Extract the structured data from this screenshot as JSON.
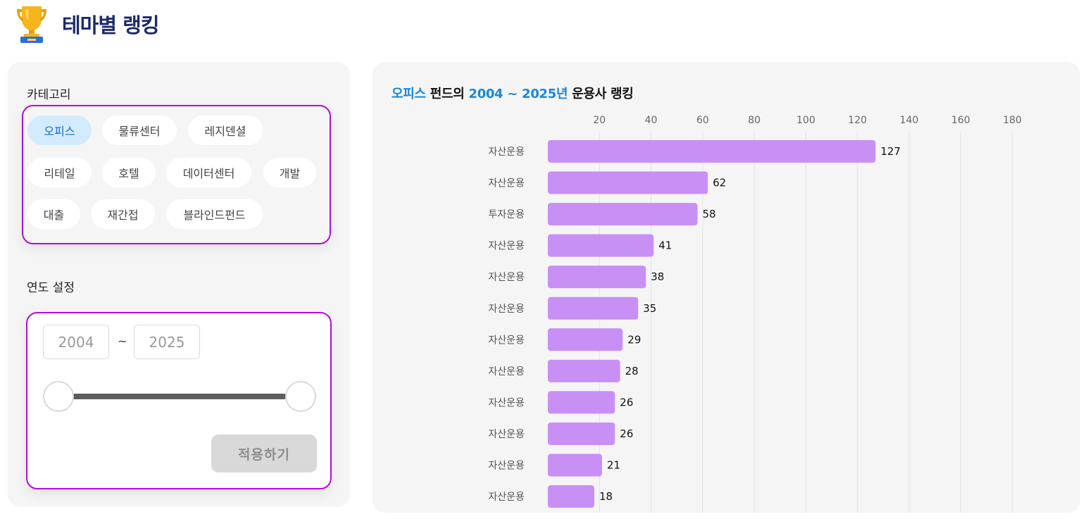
{
  "header": {
    "title": "테마별 랭킹",
    "icon": "trophy-icon"
  },
  "filters": {
    "category_label": "카테고리",
    "categories": [
      {
        "label": "오피스",
        "active": true
      },
      {
        "label": "물류센터",
        "active": false
      },
      {
        "label": "레지덴셜",
        "active": false
      },
      {
        "label": "리테일",
        "active": false
      },
      {
        "label": "호텔",
        "active": false
      },
      {
        "label": "데이터센터",
        "active": false
      },
      {
        "label": "개발",
        "active": false
      },
      {
        "label": "대출",
        "active": false
      },
      {
        "label": "재간접",
        "active": false
      },
      {
        "label": "블라인드펀드",
        "active": false
      }
    ],
    "year_label": "연도 설정",
    "year_from": "2004",
    "year_to": "2025",
    "year_separator": "~",
    "apply_label": "적용하기"
  },
  "chart": {
    "title_category": "오피스",
    "title_mid": " 펀드의 ",
    "title_years": "2004 ~ 2025년",
    "title_end": " 운용사 랭킹"
  },
  "colors": {
    "bar": "#c88ff5",
    "accent": "#1787de",
    "border": "#b10ed6"
  },
  "chart_data": {
    "type": "bar",
    "orientation": "horizontal",
    "categories": [
      "자산운용",
      "자산운용",
      "투자운용",
      "자산운용",
      "자산운용",
      "자산운용",
      "자산운용",
      "자산운용",
      "자산운용",
      "자산운용",
      "자산운용",
      "자산운용"
    ],
    "values": [
      127,
      62,
      58,
      41,
      38,
      35,
      29,
      28,
      26,
      26,
      21,
      18
    ],
    "xticks": [
      20,
      40,
      60,
      80,
      100,
      120,
      140,
      160,
      180
    ],
    "xlim": [
      0,
      180
    ],
    "grid": true,
    "xaxis_position": "top"
  }
}
